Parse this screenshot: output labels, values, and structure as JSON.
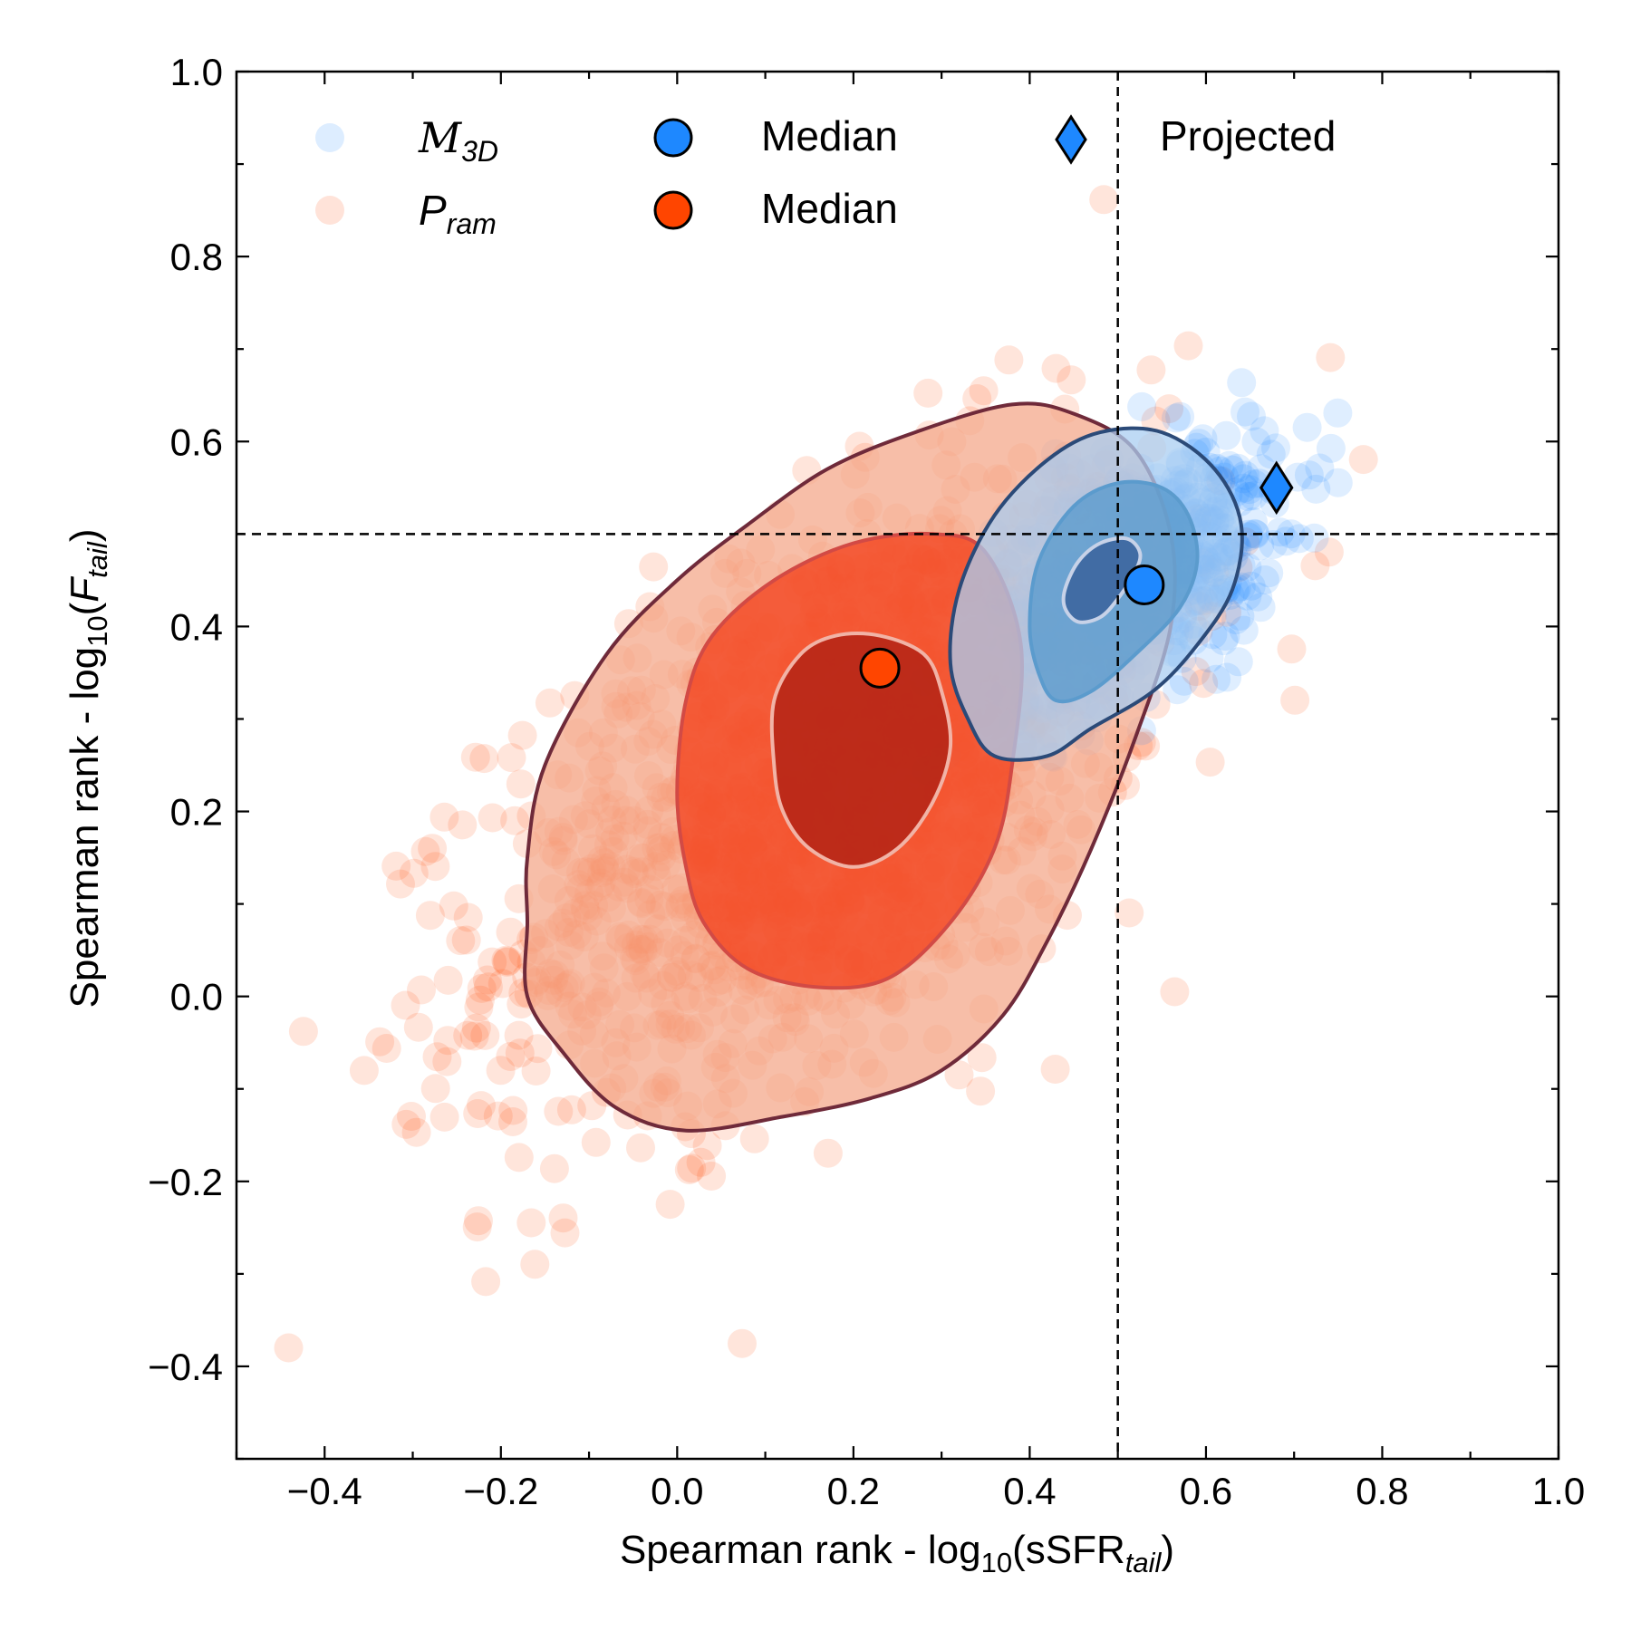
{
  "chart_data": {
    "type": "scatter",
    "xlabel": {
      "main": "Spearman rank - log",
      "sub": "10",
      "paren_open": "(sSFR",
      "italic_sub": "tail",
      "paren_close": ")"
    },
    "ylabel": {
      "main": "Spearman rank - log",
      "sub": "10",
      "paren_open": "(",
      "italic_var": "F",
      "italic_sub": "tail",
      "paren_close": ")"
    },
    "xlim": [
      -0.5,
      1.0
    ],
    "ylim": [
      -0.5,
      1.0
    ],
    "xticks": [
      -0.4,
      -0.2,
      0.0,
      0.2,
      0.4,
      0.6,
      0.8,
      1.0
    ],
    "yticks": [
      -0.4,
      -0.2,
      0.0,
      0.2,
      0.4,
      0.6,
      0.8,
      1.0
    ],
    "xtick_labels": [
      "−0.4",
      "−0.2",
      "0.0",
      "0.2",
      "0.4",
      "0.6",
      "0.8",
      "1.0"
    ],
    "ytick_labels": [
      "−0.4",
      "−0.2",
      "0.0",
      "0.2",
      "0.4",
      "0.6",
      "0.8",
      "1.0"
    ],
    "reference_lines": {
      "x": 0.5,
      "y": 0.5,
      "style": "dashed"
    },
    "series": [
      {
        "name": "M3D",
        "legend_label": "M",
        "legend_sub": "3D",
        "color": "#1e88ff",
        "cloud": {
          "center": [
            0.52,
            0.46
          ],
          "spread": [
            0.08,
            0.07
          ],
          "correlation": 0.5,
          "count": 700
        },
        "median": [
          0.53,
          0.445
        ],
        "median_label": "Median",
        "contours": [
          {
            "level": "outer",
            "fill": "#a9cdf2",
            "stroke": "#2b4a78",
            "points": [
              [
                0.32,
                0.44
              ],
              [
                0.36,
                0.52
              ],
              [
                0.42,
                0.58
              ],
              [
                0.48,
                0.61
              ],
              [
                0.55,
                0.61
              ],
              [
                0.61,
                0.57
              ],
              [
                0.64,
                0.51
              ],
              [
                0.63,
                0.44
              ],
              [
                0.59,
                0.38
              ],
              [
                0.54,
                0.33
              ],
              [
                0.47,
                0.29
              ],
              [
                0.42,
                0.26
              ],
              [
                0.36,
                0.26
              ],
              [
                0.33,
                0.3
              ],
              [
                0.31,
                0.36
              ]
            ]
          },
          {
            "level": "middle",
            "fill": "#5b9bcd",
            "stroke": "#5b9bcd",
            "points": [
              [
                0.4,
                0.4
              ],
              [
                0.41,
                0.47
              ],
              [
                0.45,
                0.53
              ],
              [
                0.5,
                0.555
              ],
              [
                0.55,
                0.55
              ],
              [
                0.58,
                0.52
              ],
              [
                0.59,
                0.47
              ],
              [
                0.57,
                0.42
              ],
              [
                0.52,
                0.37
              ],
              [
                0.47,
                0.33
              ],
              [
                0.43,
                0.32
              ],
              [
                0.41,
                0.35
              ]
            ]
          },
          {
            "level": "inner",
            "fill": "#3a639c",
            "stroke": "#c7d2e8",
            "points": [
              [
                0.44,
                0.44
              ],
              [
                0.455,
                0.47
              ],
              [
                0.48,
                0.49
              ],
              [
                0.51,
                0.495
              ],
              [
                0.525,
                0.48
              ],
              [
                0.52,
                0.46
              ],
              [
                0.5,
                0.43
              ],
              [
                0.48,
                0.41
              ],
              [
                0.455,
                0.405
              ],
              [
                0.44,
                0.42
              ]
            ]
          }
        ]
      },
      {
        "name": "Pram",
        "legend_label": "P",
        "legend_sub": "ram",
        "color": "#ff4500",
        "cloud": {
          "center": [
            0.17,
            0.22
          ],
          "spread": [
            0.19,
            0.17
          ],
          "correlation": 0.55,
          "count": 1500
        },
        "median": [
          0.23,
          0.355
        ],
        "median_label": "Median",
        "contours": [
          {
            "level": "outer",
            "fill": "#f4a88b",
            "stroke": "#6f2a3a",
            "points": [
              [
                -0.17,
                0.15
              ],
              [
                -0.15,
                0.25
              ],
              [
                -0.08,
                0.37
              ],
              [
                0.0,
                0.45
              ],
              [
                0.08,
                0.51
              ],
              [
                0.17,
                0.57
              ],
              [
                0.27,
                0.61
              ],
              [
                0.38,
                0.64
              ],
              [
                0.45,
                0.63
              ],
              [
                0.52,
                0.59
              ],
              [
                0.56,
                0.5
              ],
              [
                0.56,
                0.4
              ],
              [
                0.52,
                0.28
              ],
              [
                0.47,
                0.16
              ],
              [
                0.42,
                0.06
              ],
              [
                0.37,
                -0.02
              ],
              [
                0.3,
                -0.08
              ],
              [
                0.22,
                -0.11
              ],
              [
                0.12,
                -0.13
              ],
              [
                0.01,
                -0.145
              ],
              [
                -0.07,
                -0.12
              ],
              [
                -0.13,
                -0.06
              ],
              [
                -0.17,
                0.0
              ],
              [
                -0.17,
                0.08
              ]
            ]
          },
          {
            "level": "middle",
            "fill": "#f2431e",
            "stroke": "#d24a45",
            "points": [
              [
                0.0,
                0.22
              ],
              [
                0.01,
                0.32
              ],
              [
                0.04,
                0.39
              ],
              [
                0.11,
                0.45
              ],
              [
                0.2,
                0.49
              ],
              [
                0.29,
                0.5
              ],
              [
                0.35,
                0.48
              ],
              [
                0.39,
                0.38
              ],
              [
                0.38,
                0.25
              ],
              [
                0.36,
                0.16
              ],
              [
                0.31,
                0.08
              ],
              [
                0.24,
                0.02
              ],
              [
                0.16,
                0.01
              ],
              [
                0.08,
                0.03
              ],
              [
                0.03,
                0.08
              ],
              [
                0.01,
                0.14
              ]
            ]
          },
          {
            "level": "inner",
            "fill": "#b32315",
            "stroke": "#f1b3a6",
            "points": [
              [
                0.11,
                0.25
              ],
              [
                0.11,
                0.32
              ],
              [
                0.14,
                0.37
              ],
              [
                0.18,
                0.39
              ],
              [
                0.23,
                0.39
              ],
              [
                0.28,
                0.37
              ],
              [
                0.3,
                0.33
              ],
              [
                0.31,
                0.27
              ],
              [
                0.29,
                0.21
              ],
              [
                0.25,
                0.16
              ],
              [
                0.2,
                0.14
              ],
              [
                0.15,
                0.16
              ],
              [
                0.12,
                0.2
              ]
            ]
          }
        ]
      }
    ],
    "projected": {
      "label": "Projected",
      "x": 0.68,
      "y": 0.55,
      "color": "#1e88ff",
      "marker": "diamond"
    }
  }
}
